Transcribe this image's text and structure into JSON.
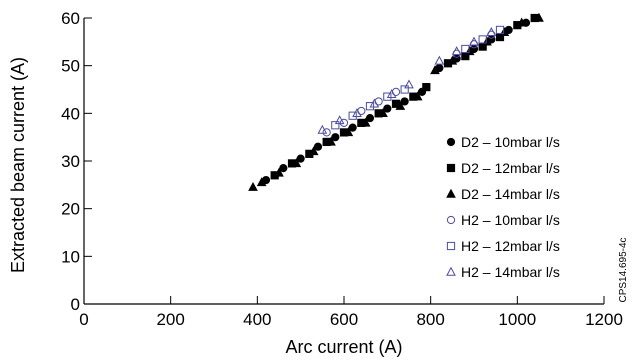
{
  "chart_data": {
    "type": "scatter",
    "xlabel": "Arc current (A)",
    "ylabel": "Extracted beam current (A)",
    "xlim": [
      0,
      1200
    ],
    "ylim": [
      0,
      60
    ],
    "xticks": [
      0,
      200,
      400,
      600,
      800,
      1000,
      1200
    ],
    "yticks": [
      0,
      10,
      20,
      30,
      40,
      50,
      60
    ],
    "legend_position": "right",
    "annotation": "CPS14.695-4c",
    "series": [
      {
        "name": "D2 – 10mbar l/s",
        "marker": "circle-filled",
        "color": "#000000",
        "x": [
          420,
          460,
          500,
          540,
          580,
          620,
          660,
          700,
          740,
          780,
          820,
          860,
          900,
          940,
          980,
          1020
        ],
        "y": [
          26.0,
          28.5,
          30.5,
          33.0,
          35.0,
          37.0,
          39.0,
          41.0,
          42.5,
          44.5,
          49.5,
          51.5,
          53.5,
          55.5,
          57.5,
          59.0
        ]
      },
      {
        "name": "D2 – 12mbar l/s",
        "marker": "square-filled",
        "color": "#000000",
        "x": [
          440,
          480,
          520,
          560,
          600,
          640,
          680,
          720,
          760,
          790,
          840,
          880,
          920,
          960,
          1000,
          1040
        ],
        "y": [
          27.0,
          29.5,
          31.5,
          34.0,
          36.0,
          38.0,
          40.0,
          42.0,
          43.5,
          45.5,
          50.5,
          52.0,
          54.0,
          56.0,
          58.5,
          60.0
        ]
      },
      {
        "name": "D2 – 14mbar l/s",
        "marker": "triangle-filled",
        "color": "#000000",
        "x": [
          390,
          410,
          450,
          490,
          530,
          570,
          610,
          650,
          690,
          730,
          770,
          810,
          850,
          890,
          930,
          970,
          1010,
          1050
        ],
        "y": [
          24.5,
          25.5,
          27.5,
          29.5,
          32.0,
          34.0,
          36.0,
          38.0,
          40.0,
          41.5,
          43.5,
          49.0,
          51.0,
          53.0,
          55.0,
          57.0,
          59.0,
          60.0
        ]
      },
      {
        "name": "H2 – 10mbar l/s",
        "marker": "circle-open",
        "color": "#4a4aa8",
        "x": [
          560,
          600,
          640,
          680,
          720,
          860,
          900,
          940
        ],
        "y": [
          36.0,
          38.0,
          40.5,
          42.5,
          44.5,
          52.5,
          54.5,
          56.5
        ]
      },
      {
        "name": "H2 – 12mbar l/s",
        "marker": "square-open",
        "color": "#4a4aa8",
        "x": [
          580,
          620,
          660,
          700,
          740,
          880,
          920,
          960
        ],
        "y": [
          37.5,
          39.5,
          41.5,
          43.5,
          45.0,
          53.5,
          55.5,
          57.5
        ]
      },
      {
        "name": "H2 – 14mbar l/s",
        "marker": "triangle-open",
        "color": "#4a4aa8",
        "x": [
          550,
          590,
          630,
          670,
          710,
          750,
          820,
          860,
          900,
          940
        ],
        "y": [
          36.5,
          38.5,
          40.0,
          42.0,
          44.0,
          46.0,
          51.0,
          53.0,
          55.0,
          57.0
        ]
      }
    ]
  }
}
